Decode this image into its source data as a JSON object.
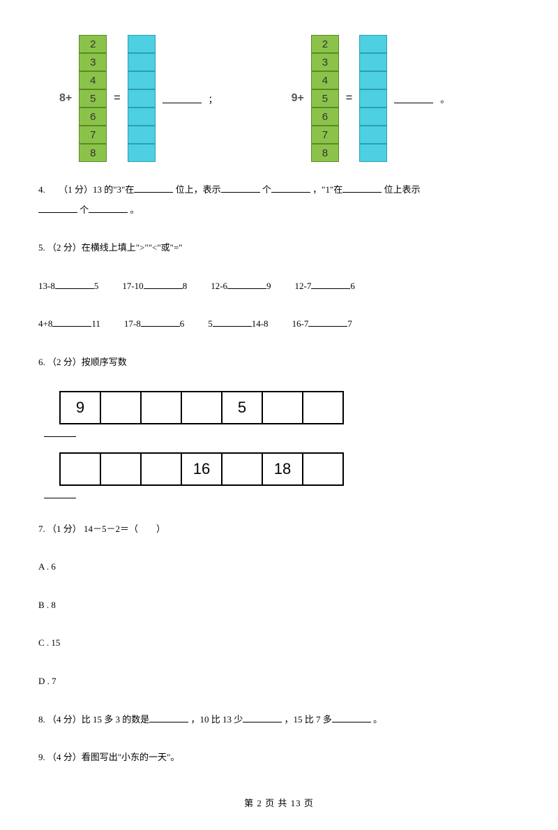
{
  "q3": {
    "groups": [
      {
        "label": "8+",
        "eq": "=",
        "green": [
          "2",
          "3",
          "4",
          "5",
          "6",
          "7",
          "8"
        ],
        "blueCount": 7,
        "tail": "；"
      },
      {
        "label": "9+",
        "eq": "=",
        "green": [
          "2",
          "3",
          "4",
          "5",
          "6",
          "7",
          "8"
        ],
        "blueCount": 7,
        "tail": "。"
      }
    ]
  },
  "q4": {
    "num": "4.",
    "prefix": "　 （1 分）13 的\"3\"在",
    "t1": "位上，表示",
    "t2": "个",
    "t3": "，\"1\"在",
    "t4": "位上表示",
    "t5": "个",
    "t6": "。"
  },
  "q5": {
    "num": "5. （2 分）在横线上填上\">\"\"<\"或\"=\"",
    "r1": [
      {
        "a": "13-8",
        "b": "5"
      },
      {
        "a": "17-10",
        "b": "8"
      },
      {
        "a": "12-6",
        "b": "9"
      },
      {
        "a": "12-7",
        "b": "6"
      }
    ],
    "r2": [
      {
        "a": "4+8",
        "b": "11"
      },
      {
        "a": "17-8",
        "b": "6"
      },
      {
        "a": "5",
        "b": "14-8"
      },
      {
        "a": "16-7",
        "b": "7"
      }
    ]
  },
  "q6": {
    "num": "6. （2 分）按顺序写数",
    "row1": [
      "9",
      "",
      "",
      "",
      "5",
      "",
      ""
    ],
    "row2": [
      "",
      "",
      "",
      "16",
      "",
      "18",
      ""
    ]
  },
  "q7": {
    "num": "7. （1 分）  14－5－2＝（　　）",
    "opts": [
      {
        "k": "A",
        "v": "6"
      },
      {
        "k": "B",
        "v": "8"
      },
      {
        "k": "C",
        "v": "15"
      },
      {
        "k": "D",
        "v": "7"
      }
    ]
  },
  "q8": {
    "num": "8. （4 分）比 15 多 3 的数是",
    "t1": "，10 比 13 少",
    "t2": "，15 比 7 多",
    "t3": "。"
  },
  "q9": {
    "num": "9. （4 分）看图写出\"小东的一天\"。"
  },
  "footer": "第 2 页 共 13 页"
}
